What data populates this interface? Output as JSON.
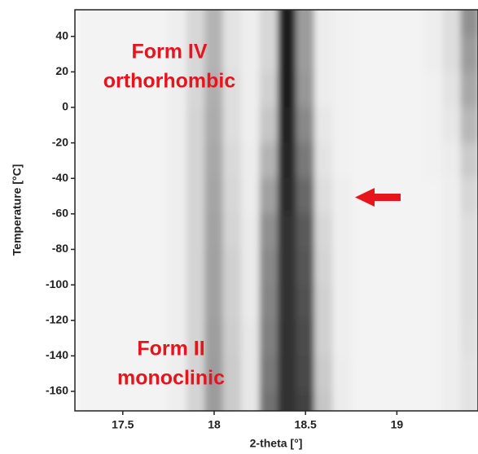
{
  "chart_data": {
    "type": "heatmap",
    "x_label": "2-theta [°]",
    "y_label": "Temperature [°C]",
    "annotations": [
      "Form IV",
      "orthorhombic",
      "Form II",
      "monoclinic"
    ],
    "xlim": [
      17.238,
      19.444
    ],
    "ylim": [
      -171,
      55
    ],
    "xticks": [
      17.5,
      18,
      18.5,
      19
    ],
    "yticks": [
      40,
      20,
      0,
      -20,
      -40,
      -60,
      -80,
      -100,
      -120,
      -140,
      -160,
      -180
    ],
    "x": [
      17.3,
      17.4,
      17.5,
      17.6,
      17.7,
      17.8,
      17.9,
      18.0,
      18.1,
      18.2,
      18.3,
      18.4,
      18.5,
      18.6,
      18.7,
      18.8,
      18.9,
      19.0,
      19.1,
      19.2,
      19.3,
      19.4
    ],
    "y": [
      50,
      30,
      10,
      -10,
      -30,
      -50,
      -70,
      -90,
      -110,
      -130,
      -150,
      -170
    ],
    "z": [
      [
        3,
        3,
        3,
        3,
        3,
        5,
        15,
        30,
        10,
        5,
        15,
        95,
        40,
        6,
        4,
        3,
        3,
        3,
        3,
        5,
        12,
        45
      ],
      [
        3,
        3,
        3,
        3,
        3,
        5,
        15,
        30,
        10,
        5,
        15,
        95,
        40,
        6,
        4,
        3,
        3,
        3,
        3,
        5,
        12,
        40
      ],
      [
        3,
        3,
        3,
        3,
        3,
        5,
        15,
        32,
        12,
        5,
        18,
        95,
        42,
        6,
        4,
        3,
        3,
        3,
        3,
        4,
        10,
        35
      ],
      [
        3,
        3,
        3,
        3,
        3,
        5,
        16,
        33,
        12,
        5,
        22,
        92,
        48,
        8,
        4,
        3,
        3,
        3,
        3,
        4,
        8,
        28
      ],
      [
        3,
        3,
        3,
        3,
        3,
        5,
        16,
        35,
        14,
        6,
        30,
        90,
        55,
        10,
        4,
        3,
        3,
        3,
        3,
        4,
        6,
        20
      ],
      [
        3,
        3,
        3,
        3,
        3,
        5,
        16,
        36,
        15,
        6,
        38,
        88,
        62,
        12,
        5,
        3,
        3,
        3,
        3,
        3,
        5,
        15
      ],
      [
        3,
        3,
        3,
        3,
        3,
        5,
        16,
        37,
        16,
        7,
        45,
        86,
        68,
        15,
        5,
        3,
        3,
        3,
        3,
        3,
        5,
        12
      ],
      [
        3,
        3,
        3,
        3,
        3,
        5,
        16,
        38,
        18,
        7,
        48,
        85,
        70,
        16,
        5,
        3,
        3,
        3,
        3,
        3,
        5,
        12
      ],
      [
        3,
        3,
        3,
        3,
        3,
        5,
        16,
        38,
        18,
        7,
        50,
        85,
        72,
        18,
        5,
        3,
        3,
        3,
        3,
        3,
        5,
        12
      ],
      [
        3,
        3,
        3,
        3,
        3,
        5,
        16,
        39,
        19,
        8,
        52,
        85,
        74,
        18,
        5,
        3,
        3,
        3,
        3,
        3,
        5,
        11
      ],
      [
        3,
        3,
        3,
        3,
        3,
        5,
        16,
        40,
        20,
        8,
        55,
        85,
        75,
        20,
        6,
        3,
        3,
        3,
        3,
        3,
        5,
        10
      ],
      [
        3,
        3,
        3,
        3,
        3,
        5,
        16,
        40,
        20,
        8,
        58,
        86,
        78,
        22,
        6,
        3,
        3,
        3,
        3,
        3,
        5,
        10
      ]
    ]
  }
}
